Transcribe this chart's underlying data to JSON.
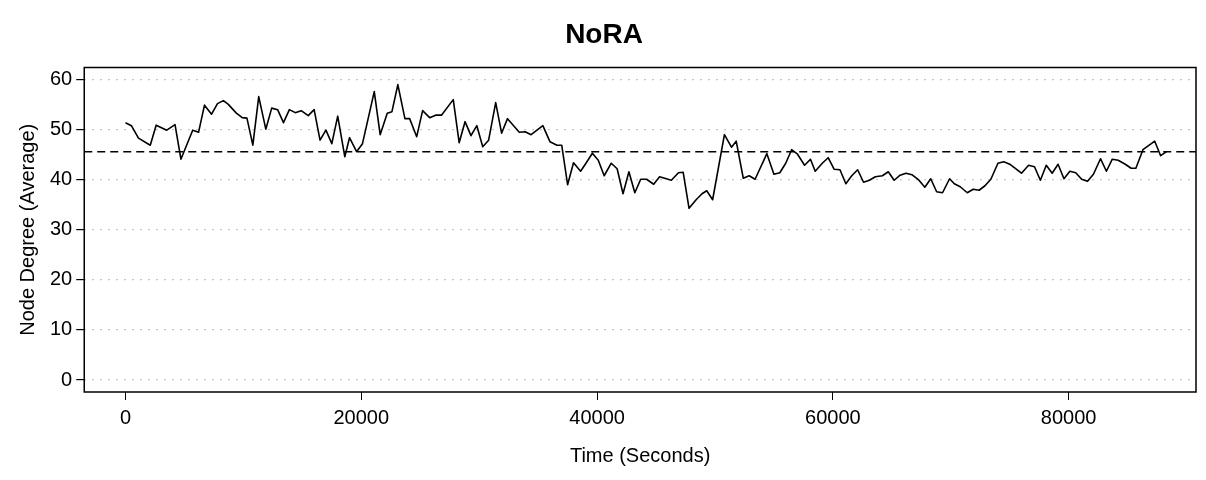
{
  "chart_data": {
    "type": "line",
    "title": "NoRA",
    "xlabel": "Time (Seconds)",
    "ylabel": "Node Degree (Average)",
    "xlim": [
      -3500,
      90800
    ],
    "ylim": [
      -2.4,
      62.4
    ],
    "xticks": [
      0,
      20000,
      40000,
      60000,
      80000
    ],
    "yticks": [
      0,
      10,
      20,
      30,
      40,
      50,
      60
    ],
    "grid": "y",
    "legend": false,
    "marker": "none",
    "line_style": "solid",
    "ref_lines": [
      {
        "axis": "y",
        "value": 45.6,
        "line_style": "dashed",
        "color": "#000000"
      }
    ],
    "series": [
      {
        "color": "#000000",
        "x": [
          0,
          500,
          1100,
          2100,
          2600,
          3500,
          4200,
          4700,
          5700,
          6200,
          6700,
          7300,
          7800,
          8300,
          8700,
          9400,
          9900,
          10300,
          10800,
          11300,
          11900,
          12400,
          12900,
          13400,
          13900,
          14400,
          14900,
          15500,
          16000,
          16500,
          17000,
          17500,
          18000,
          18600,
          19000,
          19600,
          20100,
          21100,
          21600,
          22200,
          22600,
          23100,
          23700,
          24100,
          24700,
          25200,
          25800,
          26300,
          26800,
          27800,
          28300,
          28800,
          29300,
          29800,
          30300,
          30800,
          31400,
          31900,
          32400,
          33400,
          33900,
          34400,
          35400,
          36000,
          36600,
          37000,
          37500,
          38000,
          38600,
          39000,
          39600,
          40100,
          40600,
          41200,
          41700,
          42200,
          42700,
          43200,
          43700,
          44200,
          44800,
          45300,
          46300,
          46900,
          47300,
          47800,
          48400,
          48900,
          49300,
          49800,
          50800,
          51400,
          51800,
          52400,
          52900,
          53400,
          54400,
          55000,
          55500,
          56000,
          56500,
          57000,
          57600,
          58100,
          58500,
          59100,
          59600,
          60100,
          60600,
          61100,
          61600,
          62100,
          62600,
          63100,
          63600,
          64200,
          64700,
          65200,
          65700,
          66200,
          66700,
          67300,
          67800,
          68300,
          68800,
          69300,
          69900,
          70300,
          70800,
          71400,
          71900,
          72400,
          72900,
          73400,
          74000,
          74500,
          75000,
          75500,
          76000,
          76600,
          77100,
          77600,
          78100,
          78600,
          79100,
          79600,
          80100,
          80600,
          81100,
          81600,
          82100,
          82700,
          83200,
          83700,
          84200,
          84800,
          85300,
          85700,
          86300,
          87300,
          87800,
          88300
        ],
        "values": [
          51.4,
          50.8,
          48.3,
          46.9,
          50.9,
          49.9,
          51.0,
          44.1,
          49.9,
          49.5,
          54.9,
          53.1,
          55.2,
          55.8,
          55.1,
          53.3,
          52.4,
          52.3,
          46.9,
          56.6,
          50.1,
          54.3,
          54.0,
          51.4,
          54.0,
          53.4,
          53.8,
          52.8,
          54.0,
          47.9,
          49.9,
          47.2,
          52.7,
          44.6,
          48.4,
          45.6,
          47.2,
          57.6,
          49.0,
          53.3,
          53.6,
          59.0,
          52.2,
          52.2,
          48.6,
          53.8,
          52.4,
          52.9,
          52.9,
          56.0,
          47.4,
          51.6,
          48.8,
          50.8,
          46.6,
          47.9,
          55.4,
          49.3,
          52.2,
          49.5,
          49.6,
          49.0,
          50.8,
          47.6,
          46.9,
          46.9,
          39.0,
          43.4,
          41.7,
          43.1,
          45.3,
          43.9,
          40.8,
          43.3,
          42.2,
          37.2,
          41.6,
          37.4,
          40.1,
          40.1,
          39.1,
          40.6,
          39.9,
          41.4,
          41.5,
          34.3,
          36.0,
          37.2,
          37.8,
          36.0,
          49.0,
          46.5,
          47.7,
          40.3,
          40.8,
          40.1,
          45.2,
          41.1,
          41.4,
          43.3,
          46.0,
          45.1,
          42.9,
          44.1,
          41.7,
          43.3,
          44.4,
          42.1,
          42.0,
          39.2,
          40.8,
          42.0,
          39.5,
          39.9,
          40.6,
          40.8,
          41.6,
          39.9,
          40.9,
          41.3,
          41.0,
          39.9,
          38.5,
          40.2,
          37.6,
          37.4,
          40.2,
          39.2,
          38.6,
          37.4,
          38.1,
          37.9,
          38.8,
          40.1,
          43.3,
          43.6,
          43.1,
          42.2,
          41.3,
          42.9,
          42.6,
          39.9,
          42.9,
          41.3,
          43.1,
          40.2,
          41.7,
          41.4,
          40.1,
          39.7,
          41.1,
          44.2,
          41.7,
          44.1,
          43.9,
          43.1,
          42.3,
          42.3,
          46.0,
          47.7,
          44.8,
          45.6
        ]
      }
    ]
  }
}
